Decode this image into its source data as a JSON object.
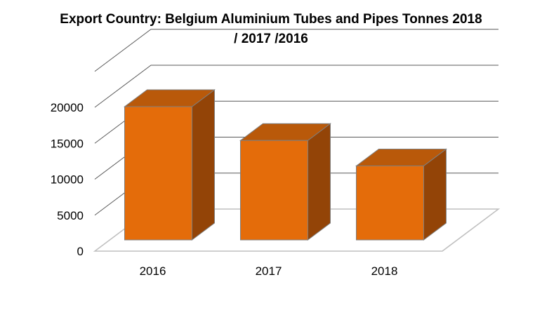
{
  "chart_data": {
    "type": "bar",
    "title_lines": [
      "Export Country: Belgium Aluminium Tubes and Pipes Tonnes 2018",
      "/ 2017 /2016"
    ],
    "categories": [
      "2016",
      "2017",
      "2018"
    ],
    "values": [
      18900,
      14100,
      10500
    ],
    "ylim": [
      0,
      20000
    ],
    "yticks": [
      0,
      5000,
      10000,
      15000,
      20000
    ],
    "ytick_labels": [
      "0",
      "5000",
      "10000",
      "15000",
      "20000"
    ],
    "xlabel": "",
    "ylabel": "",
    "grid": true,
    "style": "3d-column",
    "colors": {
      "bar_front": "#E46C0A",
      "bar_top": "#B9590A",
      "bar_side": "#934407",
      "bar_edge": "#7F7F7F",
      "grid": "#595959"
    }
  }
}
